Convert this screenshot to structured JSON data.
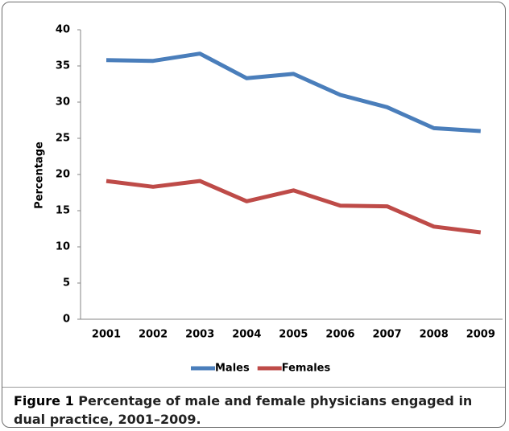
{
  "chart_data": {
    "type": "line",
    "ylabel": "Percentage",
    "categories": [
      "2001",
      "2002",
      "2003",
      "2004",
      "2005",
      "2006",
      "2007",
      "2008",
      "2009"
    ],
    "series": [
      {
        "name": "Males",
        "color": "#4a7ebb",
        "values": [
          35.8,
          35.7,
          36.7,
          33.3,
          33.9,
          31.0,
          29.3,
          26.4,
          26.0
        ]
      },
      {
        "name": "Females",
        "color": "#be4b48",
        "values": [
          19.1,
          18.3,
          19.1,
          16.3,
          17.8,
          15.7,
          15.6,
          12.8,
          12.0
        ]
      }
    ],
    "ylim": [
      0,
      40
    ],
    "yticks": [
      0,
      5,
      10,
      15,
      20,
      25,
      30,
      35,
      40
    ],
    "grid": false,
    "legend": "bottom",
    "figure_label": "Figure 1",
    "caption": "Percentage of male and female physicians engaged in dual practice, 2001–2009."
  }
}
